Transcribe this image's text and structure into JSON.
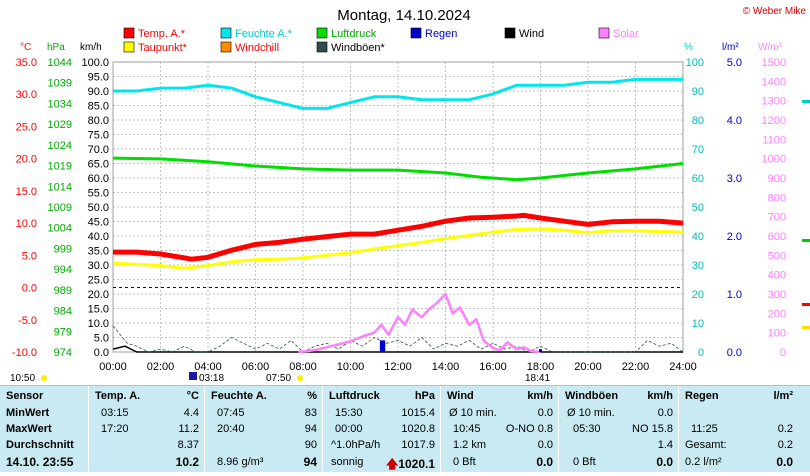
{
  "title": "Montag, 14.10.2024",
  "copyright": "© Weber Mike",
  "colors": {
    "temp": "#ff0000",
    "hum": "#00e5ee",
    "press": "#00dd00",
    "dew": "#ffff00",
    "wind": "#000000",
    "gust": "#2f4f4f",
    "rain": "#0000cc",
    "solar": "#ff80ff",
    "windchill": "#ff8c00",
    "grid": "#888888"
  },
  "legend": [
    {
      "label": "Temp. A.*",
      "color": "#ff0000",
      "text_color": "#ff0000"
    },
    {
      "label": "Feuchte A.*",
      "color": "#00e5ee",
      "text_color": "#00cccc"
    },
    {
      "label": "Luftdruck",
      "color": "#00dd00",
      "text_color": "#00aa00"
    },
    {
      "label": "Regen",
      "color": "#0000cc",
      "text_color": "#0000cc"
    },
    {
      "label": "Wind",
      "color": "#000000",
      "text_color": "#000000"
    },
    {
      "label": "Solar",
      "color": "#ff80ff",
      "text_color": "#ff80ff"
    },
    {
      "label": "Taupunkt*",
      "color": "#ffff00",
      "text_color": "#ff0000"
    },
    {
      "label": "Windchill",
      "color": "#ff8c00",
      "text_color": "#ff0000"
    },
    {
      "label": "Windböen*",
      "color": "#2f4f4f",
      "text_color": "#000000"
    }
  ],
  "axis_units": {
    "temp": "°C",
    "press": "hPa",
    "wind": "km/h",
    "hum": "%",
    "rain": "l/m²",
    "solar": "W/m²"
  },
  "chart_data": {
    "type": "line",
    "x_ticks": [
      "00:00",
      "02:00",
      "04:00",
      "06:00",
      "08:00",
      "10:00",
      "12:00",
      "14:00",
      "16:00",
      "18:00",
      "20:00",
      "22:00",
      "24:00"
    ],
    "y_axes": {
      "temp": {
        "ticks": [
          "35.0",
          "30.0",
          "25.0",
          "20.0",
          "15.0",
          "10.0",
          "5.0",
          "0.0",
          "-5.0",
          "-10.0"
        ],
        "range": [
          -10,
          35
        ]
      },
      "press": {
        "ticks": [
          "1044",
          "1039",
          "1034",
          "1029",
          "1024",
          "1019",
          "1014",
          "1009",
          "1004",
          "999",
          "994",
          "989",
          "984",
          "979",
          "974"
        ],
        "range": [
          974,
          1044
        ]
      },
      "wind": {
        "ticks": [
          "100.0",
          "95.0",
          "90.0",
          "85.0",
          "80.0",
          "75.0",
          "70.0",
          "65.0",
          "60.0",
          "55.0",
          "50.0",
          "45.0",
          "40.0",
          "35.0",
          "30.0",
          "25.0",
          "20.0",
          "15.0",
          "10.0",
          "5.0",
          "0.0"
        ],
        "range": [
          0,
          100
        ]
      },
      "hum": {
        "ticks": [
          "100",
          "90",
          "80",
          "70",
          "60",
          "50",
          "40",
          "30",
          "20",
          "10",
          "0"
        ],
        "range": [
          0,
          100
        ]
      },
      "rain": {
        "ticks": [
          "5.0",
          "4.0",
          "3.0",
          "2.0",
          "1.0",
          "0.0"
        ],
        "range": [
          0,
          5
        ]
      },
      "solar": {
        "ticks": [
          "1500",
          "1400",
          "1300",
          "1200",
          "1100",
          "1000",
          "900",
          "800",
          "700",
          "600",
          "500",
          "400",
          "300",
          "200",
          "100",
          "0"
        ],
        "range": [
          0,
          1500
        ]
      }
    },
    "series": [
      {
        "name": "Temp. A.*",
        "axis": "temp",
        "x": [
          0,
          1,
          2,
          3,
          3.3,
          4,
          5,
          6,
          7,
          8,
          9,
          10,
          11,
          12,
          13,
          14,
          15,
          16,
          17,
          17.3,
          18,
          19,
          20,
          21,
          22,
          23,
          24
        ],
        "y": [
          5.5,
          5.5,
          5.2,
          4.6,
          4.4,
          4.7,
          5.8,
          6.7,
          7.0,
          7.5,
          7.9,
          8.3,
          8.3,
          8.9,
          9.5,
          10.3,
          10.8,
          10.9,
          11.1,
          11.2,
          10.8,
          10.3,
          9.8,
          10.2,
          10.3,
          10.3,
          10.0
        ]
      },
      {
        "name": "Taupunkt*",
        "axis": "temp",
        "x": [
          0,
          1,
          2,
          3,
          4,
          5,
          6,
          7,
          8,
          9,
          10,
          11,
          12,
          13,
          14,
          15,
          16,
          17,
          18,
          19,
          20,
          21,
          22,
          23,
          24
        ],
        "y": [
          3.8,
          3.6,
          3.4,
          3.0,
          3.4,
          4.0,
          4.3,
          4.4,
          4.6,
          5.0,
          5.4,
          6.0,
          6.5,
          7.0,
          7.6,
          8.1,
          8.6,
          9.0,
          9.1,
          8.9,
          8.5,
          8.8,
          8.8,
          8.7,
          8.6
        ]
      },
      {
        "name": "Feuchte A.*",
        "axis": "hum",
        "x": [
          0,
          1,
          2,
          3,
          4,
          5,
          6,
          7,
          8,
          9,
          10,
          11,
          12,
          13,
          14,
          15,
          16,
          17,
          18,
          19,
          20,
          21,
          22,
          23,
          24
        ],
        "y": [
          90,
          90,
          91,
          91,
          92,
          91,
          88,
          86,
          84,
          84,
          86,
          88,
          88,
          87,
          87,
          87,
          89,
          92,
          92,
          92,
          93,
          93,
          94,
          94,
          94
        ]
      },
      {
        "name": "Luftdruck",
        "axis": "press",
        "x": [
          0,
          2,
          4,
          6,
          8,
          10,
          12,
          14,
          15.5,
          17,
          18,
          20,
          22,
          24
        ],
        "y": [
          1020.8,
          1020.6,
          1019.9,
          1018.9,
          1018.2,
          1017.9,
          1017.9,
          1017.2,
          1016.2,
          1015.6,
          1016.0,
          1017.2,
          1018.2,
          1019.5
        ]
      },
      {
        "name": "Wind",
        "axis": "wind",
        "x": [
          0,
          0.5,
          1,
          2,
          3,
          4,
          5,
          6,
          7,
          8,
          10,
          12,
          14,
          16,
          18,
          20,
          22,
          24
        ],
        "y": [
          1,
          2,
          0,
          0,
          0,
          0,
          0,
          0,
          0,
          0,
          0,
          0,
          0,
          0,
          0,
          0,
          0,
          0
        ]
      },
      {
        "name": "Windböen*",
        "axis": "wind",
        "x": [
          0,
          0.3,
          0.6,
          1,
          1.5,
          2,
          2.5,
          3,
          3.5,
          4,
          4.5,
          5,
          5.5,
          6,
          6.5,
          7,
          7.5,
          8,
          8.5,
          9,
          9.5,
          10,
          10.5,
          11,
          11.5,
          12,
          12.5,
          13,
          13.5,
          14,
          14.5,
          15,
          15.5,
          16,
          16.5,
          17,
          17.5,
          18,
          18.5,
          19,
          20,
          21,
          22,
          22.5,
          23,
          23.5,
          24
        ],
        "y": [
          9,
          6,
          3,
          2,
          0,
          1,
          0,
          2,
          0,
          0,
          2,
          5,
          3,
          1,
          3,
          1,
          4,
          0,
          2,
          3,
          1,
          4,
          2,
          5,
          3,
          4,
          2,
          5,
          1,
          3,
          2,
          4,
          1,
          3,
          1,
          2,
          0,
          2,
          0,
          0,
          0,
          0,
          0,
          4,
          2,
          3,
          0
        ]
      },
      {
        "name": "Solar",
        "axis": "solar",
        "x": [
          7.8,
          8.5,
          9,
          9.5,
          10,
          10.5,
          11,
          11.3,
          11.6,
          12,
          12.3,
          12.6,
          13,
          13.3,
          13.6,
          14,
          14.3,
          14.6,
          15,
          15.3,
          15.6,
          16,
          16.3,
          16.6,
          17,
          17.3,
          17.6,
          18
        ],
        "y": [
          0,
          10,
          25,
          40,
          55,
          80,
          100,
          140,
          90,
          180,
          140,
          220,
          180,
          220,
          250,
          300,
          200,
          230,
          140,
          170,
          60,
          20,
          10,
          50,
          15,
          25,
          5,
          0
        ]
      },
      {
        "name": "Regen",
        "axis": "rain",
        "x": [
          11.3,
          11.4,
          18.0
        ],
        "y": [
          0.2,
          0.2,
          0.05
        ]
      }
    ]
  },
  "side_labels": {
    "sunrise": "07:50",
    "sunset": "18:41",
    "moonrise": "03:18",
    "left_time": "10:50"
  },
  "table": {
    "sensor": {
      "header": "Sensor",
      "rows": [
        "MinWert",
        "MaxWert",
        "Durchschnitt"
      ],
      "footer": "14.10. 23:55"
    },
    "temp": {
      "header": "Temp. A.",
      "unit": "°C",
      "rows": [
        [
          "03:15",
          "4.4"
        ],
        [
          "17:20",
          "11.2"
        ],
        [
          "",
          "8.37"
        ]
      ],
      "footer": "10.2"
    },
    "hum": {
      "header": "Feuchte A.",
      "unit": "%",
      "rows": [
        [
          "07:45",
          "83"
        ],
        [
          "20:40",
          "94"
        ],
        [
          "",
          "90"
        ]
      ],
      "footer_left": "8.96 g/m³",
      "footer": "94"
    },
    "press": {
      "header": "Luftdruck",
      "unit": "hPa",
      "rows": [
        [
          "15:30",
          "1015.4"
        ],
        [
          "00:00",
          "1020.8"
        ],
        [
          "^1.0hPa/h",
          "1017.9"
        ]
      ],
      "footer_left": "sonnig",
      "footer": "1020.1"
    },
    "wind": {
      "header": "Wind",
      "unit": "km/h",
      "rows": [
        [
          "Ø 10 min.",
          "0.0"
        ],
        [
          "10:45",
          "O-NO 0.8"
        ],
        [
          "1.2 km",
          "0.0"
        ]
      ],
      "footer_left": "0 Bft",
      "footer": "0.0"
    },
    "gust": {
      "header": "Windböen",
      "unit": "km/h",
      "rows": [
        [
          "Ø 10 min.",
          "0.0"
        ],
        [
          "05:30",
          "NO 15.8"
        ],
        [
          "",
          "1.4"
        ]
      ],
      "footer_left": "0 Bft",
      "footer": "0.0"
    },
    "rain": {
      "header": "Regen",
      "unit": "l/m²",
      "rows": [
        [
          "",
          ""
        ],
        [
          "11:25",
          "0.2"
        ],
        [
          "Gesamt:",
          "0.2"
        ]
      ],
      "footer_left": "0.2 l/m²",
      "footer": "0.0"
    }
  }
}
